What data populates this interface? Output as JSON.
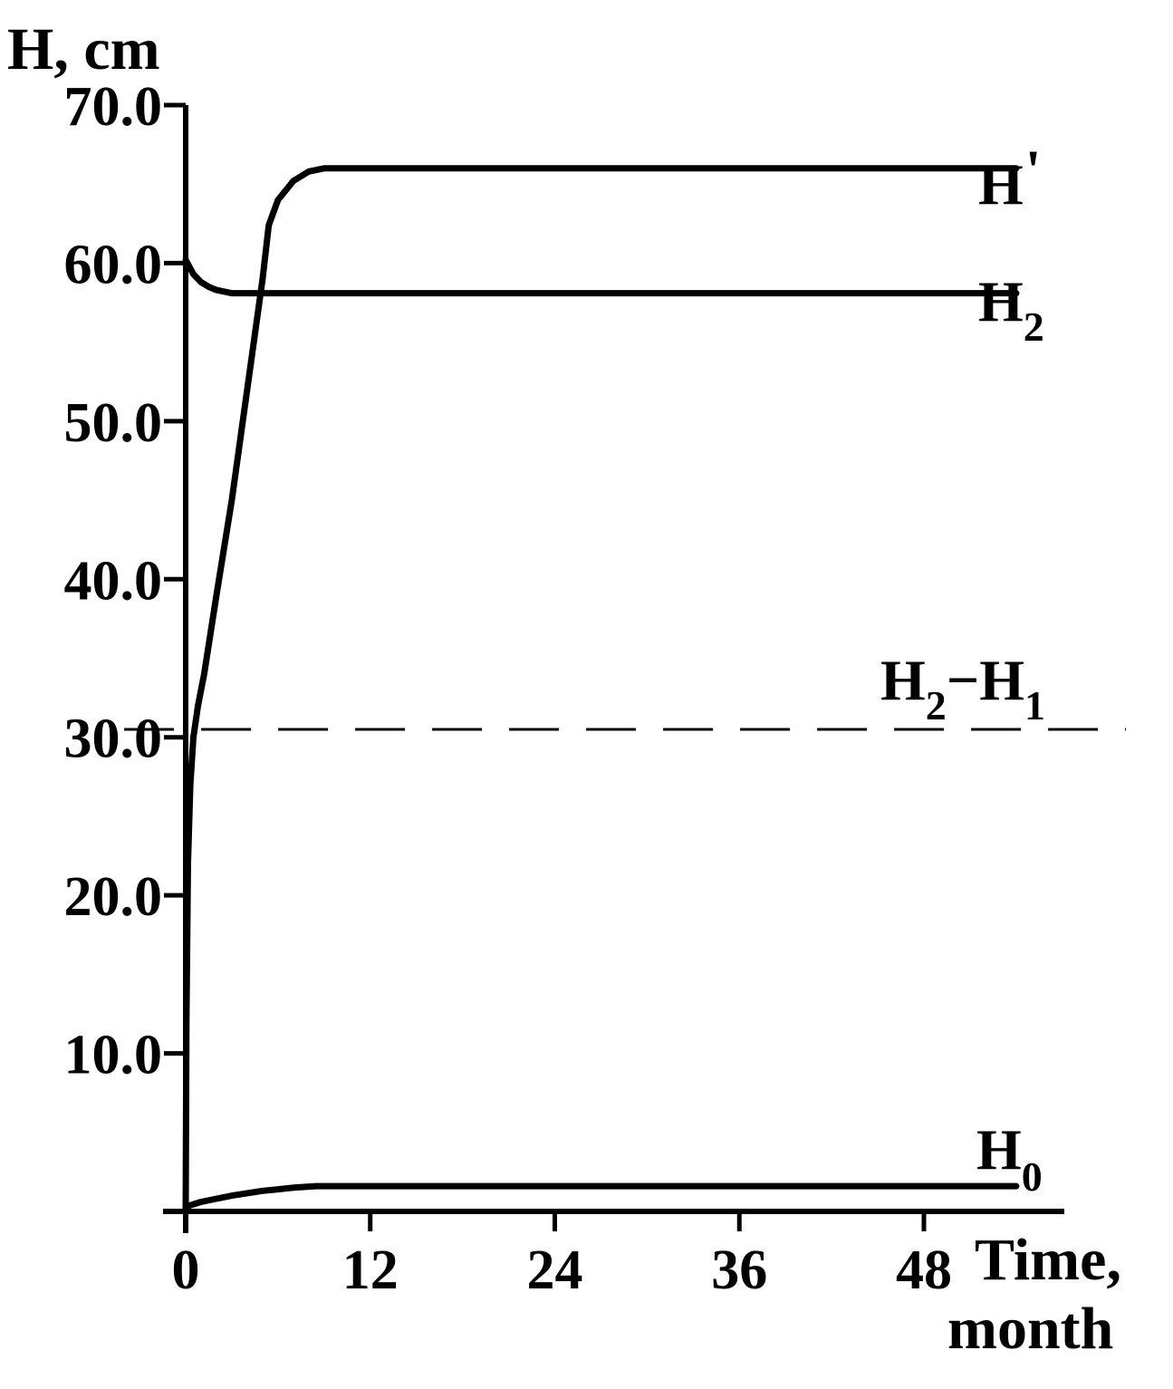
{
  "chart_data": {
    "type": "line",
    "ylabel": "H, cm",
    "xlabel_line1": "Time,",
    "xlabel_line2": "month",
    "xlim": [
      0,
      54
    ],
    "ylim": [
      0,
      70
    ],
    "x_ticks": [
      "0",
      "12",
      "24",
      "36",
      "48"
    ],
    "x_tick_values": [
      0,
      12,
      24,
      36,
      48
    ],
    "y_ticks": [
      "10.0",
      "20.0",
      "30.0",
      "40.0",
      "50.0",
      "60.0",
      "70.0"
    ],
    "y_tick_values": [
      10,
      20,
      30,
      40,
      50,
      60,
      70
    ],
    "grid": false,
    "colors": {
      "line": "#000000",
      "background": "#ffffff"
    },
    "series": [
      {
        "name": "H'",
        "label_main": "H",
        "label_sub": "'",
        "style": "solid",
        "x": [
          0,
          0.05,
          0.15,
          0.3,
          0.5,
          0.8,
          1.2,
          2.0,
          3.0,
          4.0,
          5.0,
          5.4,
          6.0,
          7.0,
          8.0,
          9.0,
          20,
          30,
          40,
          54
        ],
        "y": [
          0,
          12,
          22,
          27,
          30,
          32,
          34,
          39,
          45,
          52,
          59,
          62.4,
          64,
          65.2,
          65.8,
          66,
          66,
          66,
          66,
          66
        ]
      },
      {
        "name": "H2",
        "label_main": "H",
        "label_sub": "2",
        "style": "solid",
        "x": [
          0,
          0.5,
          1.0,
          1.5,
          2.0,
          3.0,
          3.5,
          10,
          20,
          30,
          40,
          54
        ],
        "y": [
          60.2,
          59.3,
          58.8,
          58.5,
          58.3,
          58.1,
          58.1,
          58.1,
          58.1,
          58.1,
          58.1,
          58.1
        ]
      },
      {
        "name": "H2-H1",
        "label_main": "H",
        "label_sub": "2",
        "label_mid": "−H",
        "label_sub2": "1",
        "style": "dashed",
        "x": [
          -4,
          65
        ],
        "y": [
          30.5,
          30.5
        ]
      },
      {
        "name": "H0",
        "label_main": "H",
        "label_sub": "0",
        "style": "solid",
        "x": [
          0,
          1,
          2,
          3,
          4,
          5,
          6,
          7,
          8.5,
          20,
          30,
          40,
          54
        ],
        "y": [
          0.3,
          0.6,
          0.8,
          1.0,
          1.15,
          1.3,
          1.4,
          1.5,
          1.6,
          1.6,
          1.6,
          1.6,
          1.6
        ]
      }
    ]
  }
}
